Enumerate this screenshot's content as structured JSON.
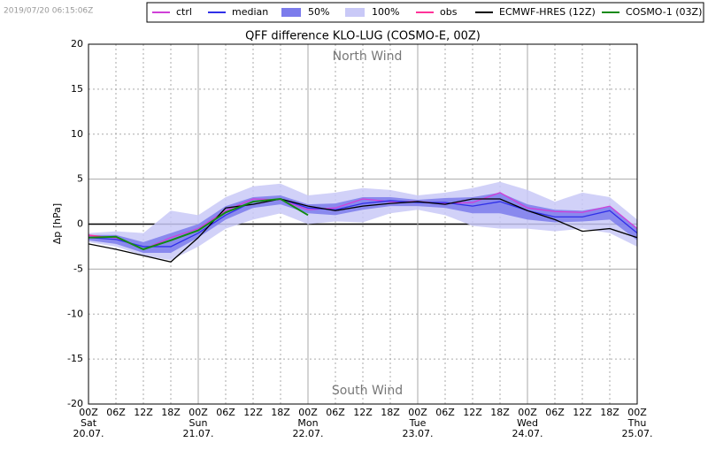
{
  "chart_data": {
    "type": "line",
    "timestamp": "2019/07/20 06:15:06Z",
    "title": "QFF difference KLO-LUG (COSMO-E, 00Z)",
    "y_label": "Δp [hPa]",
    "annotations": {
      "top": "North Wind",
      "bottom": "South Wind"
    },
    "xlim": [
      0,
      120
    ],
    "ylim": [
      -20,
      20
    ],
    "yticks": [
      -20,
      -15,
      -10,
      -5,
      0,
      5,
      10,
      15,
      20
    ],
    "xticks": [
      {
        "value": 0,
        "label": "00Z"
      },
      {
        "value": 6,
        "label": "06Z"
      },
      {
        "value": 12,
        "label": "12Z"
      },
      {
        "value": 18,
        "label": "18Z"
      },
      {
        "value": 24,
        "label": "00Z"
      },
      {
        "value": 30,
        "label": "06Z"
      },
      {
        "value": 36,
        "label": "12Z"
      },
      {
        "value": 42,
        "label": "18Z"
      },
      {
        "value": 48,
        "label": "00Z"
      },
      {
        "value": 54,
        "label": "06Z"
      },
      {
        "value": 60,
        "label": "12Z"
      },
      {
        "value": 66,
        "label": "18Z"
      },
      {
        "value": 72,
        "label": "00Z"
      },
      {
        "value": 78,
        "label": "06Z"
      },
      {
        "value": 84,
        "label": "12Z"
      },
      {
        "value": 90,
        "label": "18Z"
      },
      {
        "value": 96,
        "label": "00Z"
      },
      {
        "value": 102,
        "label": "06Z"
      },
      {
        "value": 108,
        "label": "12Z"
      },
      {
        "value": 114,
        "label": "18Z"
      },
      {
        "value": 120,
        "label": "00Z"
      }
    ],
    "day_ticks": [
      {
        "value": 0,
        "weekday": "Sat",
        "date": "20.07."
      },
      {
        "value": 24,
        "weekday": "Sun",
        "date": "21.07."
      },
      {
        "value": 48,
        "weekday": "Mon",
        "date": "22.07."
      },
      {
        "value": 72,
        "weekday": "Tue",
        "date": "23.07."
      },
      {
        "value": 96,
        "weekday": "Wed",
        "date": "24.07."
      },
      {
        "value": 120,
        "weekday": "Thu",
        "date": "25.07."
      }
    ],
    "grid": true,
    "series": [
      {
        "name": "ctrl",
        "kind": "line",
        "color": "#d040d8",
        "x": [
          0,
          6,
          12,
          18,
          24,
          30,
          36,
          42,
          48,
          54,
          60,
          66,
          72,
          78,
          84,
          90,
          96,
          102,
          108,
          114,
          120
        ],
        "values": [
          -1.3,
          -1.5,
          -2.8,
          -1.5,
          -0.5,
          1.5,
          2.8,
          2.7,
          1.6,
          1.8,
          2.8,
          2.5,
          2.5,
          2.3,
          2.4,
          3.5,
          1.8,
          1.4,
          1.3,
          2.0,
          -0.5
        ]
      },
      {
        "name": "median",
        "kind": "line",
        "color": "#3030e8",
        "x": [
          0,
          6,
          12,
          18,
          24,
          30,
          36,
          42,
          48,
          54,
          60,
          66,
          72,
          78,
          84,
          90,
          96,
          102,
          108,
          114,
          120
        ],
        "values": [
          -1.5,
          -1.7,
          -2.5,
          -2.5,
          -1.0,
          1.0,
          2.5,
          2.8,
          1.8,
          1.6,
          2.3,
          2.6,
          2.4,
          2.4,
          2.0,
          2.5,
          1.5,
          0.8,
          0.8,
          1.5,
          -1.0
        ]
      },
      {
        "name": "50%",
        "kind": "band",
        "color": "#7c7cec",
        "x": [
          0,
          6,
          12,
          18,
          24,
          30,
          36,
          42,
          48,
          54,
          60,
          66,
          72,
          78,
          84,
          90,
          96,
          102,
          108,
          114,
          120
        ],
        "high": [
          -1.2,
          -1.2,
          -2.0,
          -1.0,
          0,
          2.0,
          3.0,
          3.2,
          2.2,
          2.3,
          3.0,
          3.0,
          2.7,
          2.9,
          3.0,
          3.5,
          2.2,
          1.6,
          1.5,
          2.0,
          -0.5
        ],
        "low": [
          -1.8,
          -2.2,
          -3.2,
          -3.2,
          -1.5,
          0.5,
          1.8,
          2.2,
          1.2,
          1.0,
          1.6,
          2.0,
          2.0,
          1.8,
          1.2,
          1.2,
          0.5,
          0.2,
          0.3,
          0.5,
          -1.8
        ]
      },
      {
        "name": "100%",
        "kind": "band",
        "color": "#c9c9f7",
        "x": [
          0,
          6,
          12,
          18,
          24,
          30,
          36,
          42,
          48,
          54,
          60,
          66,
          72,
          78,
          84,
          90,
          96,
          102,
          108,
          114,
          120
        ],
        "high": [
          -1.0,
          -0.8,
          -1.0,
          1.5,
          1.0,
          3.0,
          4.2,
          4.5,
          3.2,
          3.5,
          4.0,
          3.8,
          3.2,
          3.5,
          4.0,
          4.7,
          3.8,
          2.5,
          3.5,
          3.0,
          0.5
        ],
        "low": [
          -2.0,
          -2.5,
          -3.5,
          -4.0,
          -2.5,
          -0.5,
          0.5,
          1.2,
          0,
          0.3,
          0.2,
          1.2,
          1.6,
          1.0,
          -0.2,
          -0.5,
          -0.5,
          -0.8,
          -0.5,
          -1.0,
          -2.5
        ]
      },
      {
        "name": "obs",
        "kind": "line",
        "color": "#ff3399",
        "x": [
          0,
          3,
          6
        ],
        "values": [
          -1.2,
          -1.4,
          -1.5
        ]
      },
      {
        "name": "ECMWF-HRES (12Z)",
        "kind": "line",
        "color": "#000000",
        "x": [
          0,
          6,
          12,
          18,
          24,
          30,
          36,
          42,
          48,
          54,
          60,
          66,
          72,
          78,
          84,
          90,
          96,
          102,
          108,
          114,
          120
        ],
        "values": [
          -2.2,
          -2.8,
          -3.5,
          -4.2,
          -1.5,
          1.8,
          2.2,
          2.8,
          2.0,
          1.5,
          2.0,
          2.3,
          2.5,
          2.2,
          2.8,
          2.8,
          1.5,
          0.5,
          -0.8,
          -0.5,
          -1.5
        ]
      },
      {
        "name": "COSMO-1 (03Z)",
        "kind": "line",
        "color": "#138a13",
        "x": [
          0,
          6,
          12,
          18,
          24,
          30,
          36,
          42,
          48
        ],
        "values": [
          -1.5,
          -1.4,
          -2.8,
          -1.8,
          -0.7,
          1.3,
          2.5,
          2.8,
          1.0
        ]
      }
    ]
  }
}
